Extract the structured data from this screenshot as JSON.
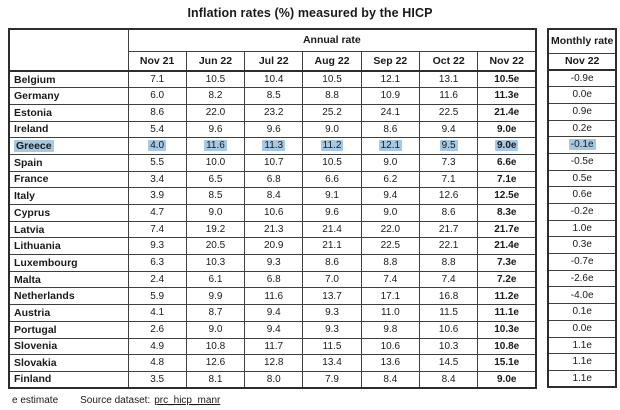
{
  "title": "Inflation rates (%) measured by the HICP",
  "footer": {
    "estimate_note": "e estimate",
    "source_label": "Source dataset:",
    "source_link": "prc_hicp_manr"
  },
  "colors": {
    "highlight": "#a6c8e2",
    "border": "#3f3f3f",
    "text": "#1a1a1a"
  },
  "chart_data": {
    "type": "table",
    "title": "Inflation rates (%) measured by the HICP",
    "column_group_label": "Annual rate",
    "monthly_group_label": "Monthly rate",
    "annual_columns": [
      "Nov 21",
      "Jun 22",
      "Jul 22",
      "Aug 22",
      "Sep 22",
      "Oct 22",
      "Nov 22"
    ],
    "monthly_column": "Nov 22",
    "highlighted_row": "Greece",
    "rows": [
      {
        "country": "Belgium",
        "annual": [
          "7.1",
          "10.5",
          "10.4",
          "10.5",
          "12.1",
          "13.1",
          "10.5e"
        ],
        "monthly": "-0.9e",
        "highlight": false
      },
      {
        "country": "Germany",
        "annual": [
          "6.0",
          "8.2",
          "8.5",
          "8.8",
          "10.9",
          "11.6",
          "11.3e"
        ],
        "monthly": "0.0e",
        "highlight": false
      },
      {
        "country": "Estonia",
        "annual": [
          "8.6",
          "22.0",
          "23.2",
          "25.2",
          "24.1",
          "22.5",
          "21.4e"
        ],
        "monthly": "0.9e",
        "highlight": false
      },
      {
        "country": "Ireland",
        "annual": [
          "5.4",
          "9.6",
          "9.6",
          "9.0",
          "8.6",
          "9.4",
          "9.0e"
        ],
        "monthly": "0.2e",
        "highlight": false
      },
      {
        "country": "Greece",
        "annual": [
          "4.0",
          "11.6",
          "11.3",
          "11.2",
          "12.1",
          "9.5",
          "9.0e"
        ],
        "monthly": "-0.1e",
        "highlight": true
      },
      {
        "country": "Spain",
        "annual": [
          "5.5",
          "10.0",
          "10.7",
          "10.5",
          "9.0",
          "7.3",
          "6.6e"
        ],
        "monthly": "-0.5e",
        "highlight": false
      },
      {
        "country": "France",
        "annual": [
          "3.4",
          "6.5",
          "6.8",
          "6.6",
          "6.2",
          "7.1",
          "7.1e"
        ],
        "monthly": "0.5e",
        "highlight": false
      },
      {
        "country": "Italy",
        "annual": [
          "3.9",
          "8.5",
          "8.4",
          "9.1",
          "9.4",
          "12.6",
          "12.5e"
        ],
        "monthly": "0.6e",
        "highlight": false
      },
      {
        "country": "Cyprus",
        "annual": [
          "4.7",
          "9.0",
          "10.6",
          "9.6",
          "9.0",
          "8.6",
          "8.3e"
        ],
        "monthly": "-0.2e",
        "highlight": false
      },
      {
        "country": "Latvia",
        "annual": [
          "7.4",
          "19.2",
          "21.3",
          "21.4",
          "22.0",
          "21.7",
          "21.7e"
        ],
        "monthly": "1.0e",
        "highlight": false
      },
      {
        "country": "Lithuania",
        "annual": [
          "9.3",
          "20.5",
          "20.9",
          "21.1",
          "22.5",
          "22.1",
          "21.4e"
        ],
        "monthly": "0.3e",
        "highlight": false
      },
      {
        "country": "Luxembourg",
        "annual": [
          "6.3",
          "10.3",
          "9.3",
          "8.6",
          "8.8",
          "8.8",
          "7.3e"
        ],
        "monthly": "-0.7e",
        "highlight": false
      },
      {
        "country": "Malta",
        "annual": [
          "2.4",
          "6.1",
          "6.8",
          "7.0",
          "7.4",
          "7.4",
          "7.2e"
        ],
        "monthly": "-2.6e",
        "highlight": false
      },
      {
        "country": "Netherlands",
        "annual": [
          "5.9",
          "9.9",
          "11.6",
          "13.7",
          "17.1",
          "16.8",
          "11.2e"
        ],
        "monthly": "-4.0e",
        "highlight": false
      },
      {
        "country": "Austria",
        "annual": [
          "4.1",
          "8.7",
          "9.4",
          "9.3",
          "11.0",
          "11.5",
          "11.1e"
        ],
        "monthly": "0.1e",
        "highlight": false
      },
      {
        "country": "Portugal",
        "annual": [
          "2.6",
          "9.0",
          "9.4",
          "9.3",
          "9.8",
          "10.6",
          "10.3e"
        ],
        "monthly": "0.0e",
        "highlight": false
      },
      {
        "country": "Slovenia",
        "annual": [
          "4.9",
          "10.8",
          "11.7",
          "11.5",
          "10.6",
          "10.3",
          "10.8e"
        ],
        "monthly": "1.1e",
        "highlight": false
      },
      {
        "country": "Slovakia",
        "annual": [
          "4.8",
          "12.6",
          "12.8",
          "13.4",
          "13.6",
          "14.5",
          "15.1e"
        ],
        "monthly": "1.1e",
        "highlight": false
      },
      {
        "country": "Finland",
        "annual": [
          "3.5",
          "8.1",
          "8.0",
          "7.9",
          "8.4",
          "8.4",
          "9.0e"
        ],
        "monthly": "1.1e",
        "highlight": false
      }
    ]
  }
}
